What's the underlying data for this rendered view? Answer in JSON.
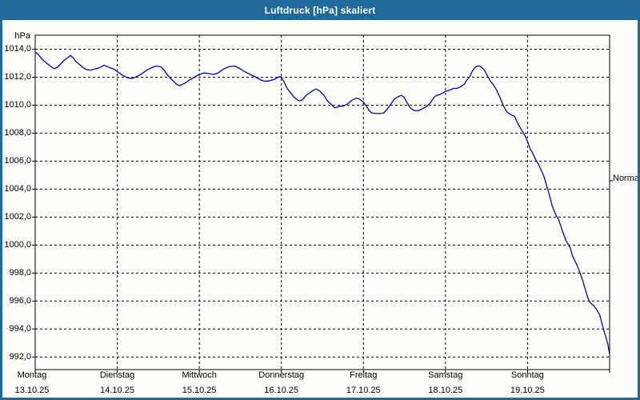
{
  "window": {
    "title": "Luftdruck [hPa] skaliert"
  },
  "colors": {
    "chrome_blue": "#1f6a9b",
    "line_blue": "#0000c8",
    "grid_black": "#000000",
    "plot_bg": "#fdfdfa",
    "title_text": "#ffffff"
  },
  "y_axis": {
    "unit": "hPa",
    "tick_labels": [
      "1014,0",
      "1012,0",
      "1010,0",
      "1008,0",
      "1006,0",
      "1004,0",
      "1002,0",
      "1000,0",
      "998,0",
      "996,0",
      "994,0",
      "992,0"
    ],
    "tick_values": [
      1014,
      1012,
      1010,
      1008,
      1006,
      1004,
      1002,
      1000,
      998,
      996,
      994,
      992
    ]
  },
  "x_axis": {
    "days": [
      {
        "name": "Montag",
        "date": "13.10.25"
      },
      {
        "name": "Dienstag",
        "date": "14.10.25"
      },
      {
        "name": "Mittwoch",
        "date": "15.10.25"
      },
      {
        "name": "Donnerstag",
        "date": "16.10.25"
      },
      {
        "name": "Freitag",
        "date": "17.10.25"
      },
      {
        "name": "Samstag",
        "date": "18.10.25"
      },
      {
        "name": "Sonntag",
        "date": "19.10.25"
      }
    ]
  },
  "right_axis": {
    "label": "Normal",
    "value_hpa": 1004.6
  },
  "chart_data": {
    "type": "line",
    "title": "Luftdruck [hPa] skaliert",
    "ylabel": "hPa",
    "xlabel": "",
    "grid": "dashed",
    "legend": "none",
    "xlim_days": [
      0,
      7
    ],
    "ylim": [
      991.1,
      1015.0
    ],
    "y_gridline_step_hpa": 2,
    "normal_level_hpa": 1004.6,
    "x_tick_days": [
      "Montag 13.10.25",
      "Dienstag 14.10.25",
      "Mittwoch 15.10.25",
      "Donnerstag 16.10.25",
      "Freitag 17.10.25",
      "Samstag 18.10.25",
      "Sonntag 19.10.25"
    ],
    "series": [
      {
        "name": "Luftdruck [hPa]",
        "x_days": [
          0.0,
          0.04,
          0.09,
          0.16,
          0.23,
          0.28,
          0.35,
          0.43,
          0.46,
          0.5,
          0.58,
          0.62,
          0.67,
          0.77,
          0.84,
          0.9,
          0.95,
          0.99,
          1.06,
          1.13,
          1.18,
          1.24,
          1.3,
          1.36,
          1.41,
          1.47,
          1.53,
          1.57,
          1.62,
          1.67,
          1.72,
          1.76,
          1.82,
          1.88,
          1.94,
          2.0,
          2.06,
          2.12,
          2.17,
          2.23,
          2.3,
          2.36,
          2.43,
          2.5,
          2.55,
          2.62,
          2.69,
          2.75,
          2.8,
          2.86,
          2.92,
          2.96,
          2.99,
          3.03,
          3.07,
          3.11,
          3.15,
          3.19,
          3.22,
          3.26,
          3.3,
          3.35,
          3.4,
          3.43,
          3.47,
          3.52,
          3.56,
          3.6,
          3.65,
          3.7,
          3.76,
          3.81,
          3.86,
          3.91,
          3.95,
          4.0,
          4.04,
          4.07,
          4.1,
          4.15,
          4.2,
          4.25,
          4.3,
          4.35,
          4.38,
          4.42,
          4.46,
          4.49,
          4.53,
          4.57,
          4.62,
          4.67,
          4.72,
          4.77,
          4.82,
          4.86,
          4.89,
          4.93,
          4.96,
          4.99,
          5.03,
          5.06,
          5.1,
          5.14,
          5.18,
          5.23,
          5.26,
          5.29,
          5.33,
          5.36,
          5.39,
          5.42,
          5.45,
          5.48,
          5.51,
          5.55,
          5.58,
          5.62,
          5.66,
          5.71,
          5.75,
          5.79,
          5.84,
          5.89,
          5.94,
          5.97,
          6.0,
          6.03,
          6.06,
          6.1,
          6.13,
          6.17,
          6.2,
          6.24,
          6.28,
          6.3,
          6.35,
          6.38,
          6.42,
          6.47,
          6.52,
          6.55,
          6.6,
          6.64,
          6.67,
          6.69,
          6.72,
          6.75,
          6.78,
          6.81,
          6.84,
          6.88,
          6.91,
          6.93,
          6.95,
          6.98,
          7.0
        ],
        "values_hpa": [
          1013.8,
          1013.6,
          1013.25,
          1012.9,
          1012.6,
          1012.75,
          1013.2,
          1013.55,
          1013.4,
          1013.1,
          1012.7,
          1012.55,
          1012.5,
          1012.65,
          1012.85,
          1012.7,
          1012.6,
          1012.45,
          1012.15,
          1011.95,
          1011.9,
          1012.05,
          1012.25,
          1012.5,
          1012.65,
          1012.8,
          1012.75,
          1012.5,
          1012.1,
          1011.8,
          1011.5,
          1011.4,
          1011.55,
          1011.8,
          1012.0,
          1012.2,
          1012.3,
          1012.25,
          1012.2,
          1012.3,
          1012.6,
          1012.75,
          1012.8,
          1012.6,
          1012.4,
          1012.2,
          1012.0,
          1011.8,
          1011.7,
          1011.75,
          1011.85,
          1012.0,
          1012.05,
          1011.7,
          1011.2,
          1010.9,
          1010.6,
          1010.4,
          1010.3,
          1010.4,
          1010.7,
          1010.9,
          1011.1,
          1011.15,
          1011.0,
          1010.7,
          1010.3,
          1010.1,
          1009.8,
          1009.9,
          1009.95,
          1010.1,
          1010.35,
          1010.5,
          1010.45,
          1010.2,
          1009.9,
          1009.6,
          1009.45,
          1009.4,
          1009.4,
          1009.45,
          1009.8,
          1010.2,
          1010.45,
          1010.6,
          1010.7,
          1010.6,
          1010.2,
          1009.8,
          1009.6,
          1009.6,
          1009.75,
          1009.9,
          1010.2,
          1010.55,
          1010.7,
          1010.75,
          1010.85,
          1010.95,
          1011.05,
          1011.1,
          1011.2,
          1011.2,
          1011.3,
          1011.5,
          1011.8,
          1012.0,
          1012.45,
          1012.7,
          1012.8,
          1012.8,
          1012.65,
          1012.45,
          1012.1,
          1011.7,
          1011.5,
          1011.1,
          1010.6,
          1009.9,
          1009.5,
          1009.35,
          1009.2,
          1008.6,
          1008.1,
          1007.8,
          1007.4,
          1006.9,
          1006.6,
          1006.1,
          1005.8,
          1005.3,
          1004.9,
          1004.1,
          1003.3,
          1002.8,
          1002.1,
          1001.8,
          1001.1,
          1000.3,
          999.8,
          999.2,
          998.6,
          998.0,
          997.5,
          997.1,
          996.5,
          996.0,
          995.8,
          995.65,
          995.4,
          995.0,
          994.3,
          993.9,
          993.5,
          992.9,
          992.2
        ]
      }
    ]
  }
}
